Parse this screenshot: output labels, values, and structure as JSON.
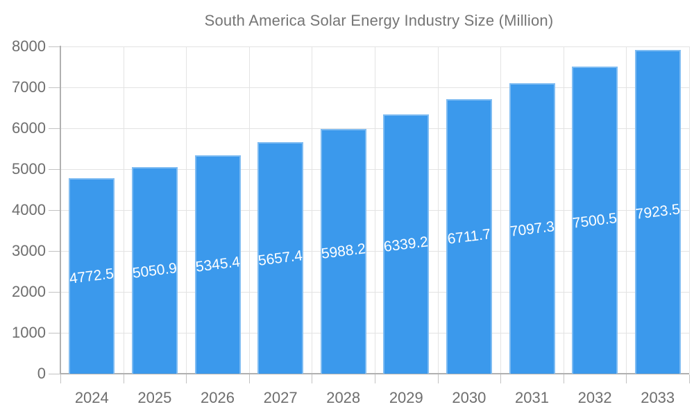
{
  "legend": {
    "label": "South America Solar Energy Industry Size (Million)",
    "swatch_color": "#3B99EC"
  },
  "chart_data": {
    "type": "bar",
    "title": "South America Solar Energy Industry Size (Million)",
    "categories": [
      "2024",
      "2025",
      "2026",
      "2027",
      "2028",
      "2029",
      "2030",
      "2031",
      "2032",
      "2033"
    ],
    "series": [
      {
        "name": "South America Solar Energy Industry Size (Million)",
        "values": [
          4772.5,
          5050.9,
          5345.4,
          5657.4,
          5988.2,
          6339.2,
          6711.7,
          7097.3,
          7500.5,
          7923.5
        ]
      }
    ],
    "data_labels_shown": true,
    "xlabel": "",
    "ylabel": "",
    "ylim": [
      0,
      8000
    ],
    "ytick_interval": 1000,
    "yticks": [
      0,
      1000,
      2000,
      3000,
      4000,
      5000,
      6000,
      7000,
      8000
    ],
    "grid": true,
    "legend_position": "top-center",
    "colors": {
      "bar": "#3B99EC",
      "bar_edge": "rgba(255,255,255,0.35)",
      "gridline": "#e3e3e3",
      "axis": "#b0b0b0",
      "tick": "#c2c2c2",
      "axis_text": "#6e6e6e",
      "legend_text": "#757575",
      "data_label_text": "#ffffff"
    }
  }
}
